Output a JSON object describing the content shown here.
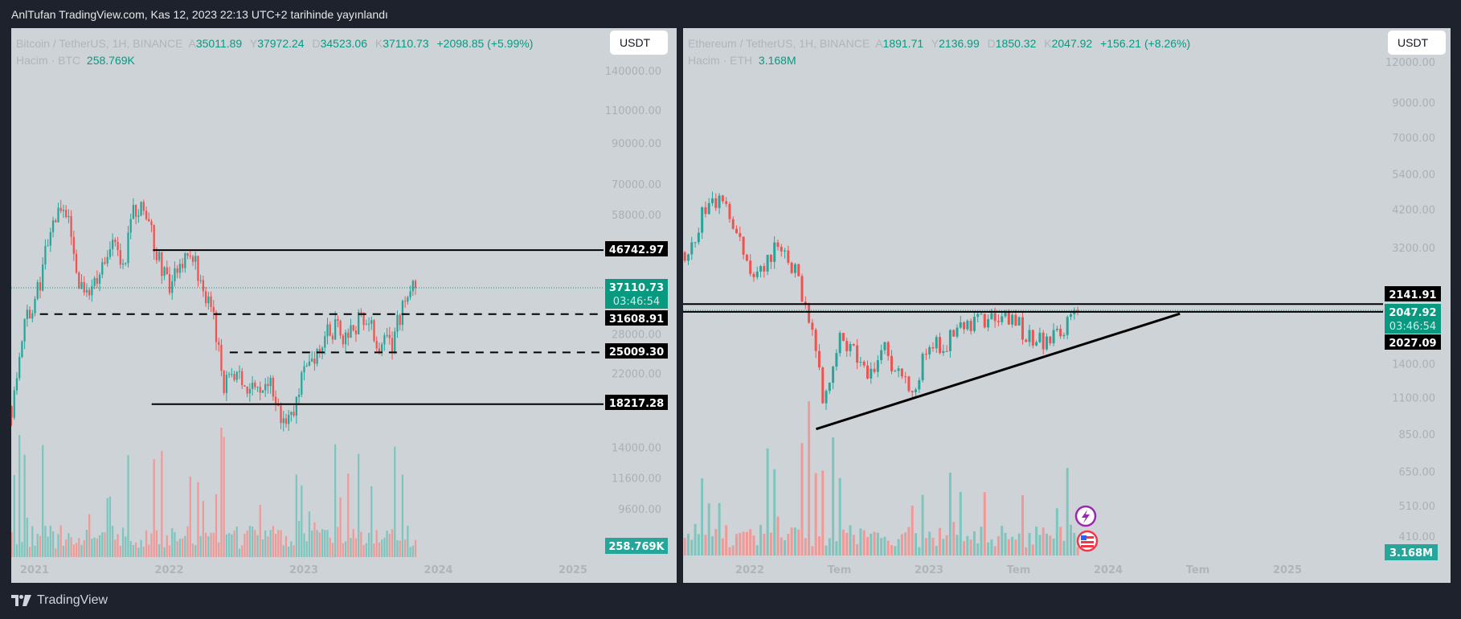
{
  "header": {
    "title": "AnlTufan TradingView.com, Kas 12, 2023 22:13 UTC+2 tarihinde yayınlandı"
  },
  "footer": {
    "brand": "TradingView"
  },
  "colors": {
    "up": "#26a69a",
    "down": "#ef5350",
    "panel": "#ced3d8",
    "bg": "#1e222d",
    "label_green": "#089981"
  },
  "chart_data": [
    {
      "type": "candlestick",
      "symbol": "Bitcoin / TetherUS, 1H, BINANCE",
      "legend": {
        "o_label": "A",
        "o": "35011.89",
        "h_label": "Y",
        "h": "37972.24",
        "l_label": "D",
        "l": "34523.06",
        "c_label": "K",
        "c": "37110.73",
        "change": "+2098.85 (+5.99%)"
      },
      "volume": {
        "label": "Hacim · BTC",
        "value": "258.769K"
      },
      "currency": "USDT",
      "scale": "log",
      "yticks": [
        "140000.00",
        "110000.00",
        "90000.00",
        "70000.00",
        "58000.00",
        "28000.00",
        "22000.00",
        "14000.00",
        "11600.00",
        "9600.00"
      ],
      "ytick_values": [
        140000,
        110000,
        90000,
        70000,
        58000,
        28000,
        22000,
        14000,
        11600,
        9600
      ],
      "xticks": [
        "2021",
        "2022",
        "2023",
        "2024",
        "2025"
      ],
      "xtick_years": [
        2021,
        2022,
        2023,
        2024,
        2025
      ],
      "current": {
        "price": "37110.73",
        "countdown": "03:46:54",
        "value": 37110.73
      },
      "levels": [
        {
          "label": "46742.97",
          "value": 46742.97,
          "style": "solid",
          "from": 2021.88
        },
        {
          "label": "31608.91",
          "value": 31608.91,
          "style": "dashed",
          "from": 2021.04
        },
        {
          "label": "25009.30",
          "value": 25009.3,
          "style": "dashed",
          "from": 2022.45
        },
        {
          "label": "18217.28",
          "value": 18217.28,
          "style": "solid",
          "from": 2021.87
        }
      ],
      "series_start": 2020.83,
      "monthly_close": [
        18000,
        29000,
        33000,
        45000,
        58000,
        57000,
        37000,
        35000,
        41000,
        47000,
        43000,
        61000,
        57000,
        46000,
        38000,
        43000,
        45000,
        38000,
        31000,
        20000,
        23000,
        20000,
        19500,
        20500,
        17000,
        16500,
        23000,
        23500,
        28000,
        29000,
        27000,
        30500,
        29300,
        26000,
        27000,
        34500,
        37110
      ]
    },
    {
      "type": "candlestick",
      "symbol": "Ethereum / TetherUS, 1H, BINANCE",
      "legend": {
        "o_label": "A",
        "o": "1891.71",
        "h_label": "Y",
        "h": "2136.99",
        "l_label": "D",
        "l": "1850.32",
        "c_label": "K",
        "c": "2047.92",
        "change": "+156.21 (+8.26%)"
      },
      "volume": {
        "label": "Hacim · ETH",
        "value": "3.168M"
      },
      "currency": "USDT",
      "scale": "log",
      "yticks": [
        "12000.00",
        "9000.00",
        "7000.00",
        "5400.00",
        "4200.00",
        "3200.00",
        "1400.00",
        "1100.00",
        "850.00",
        "650.00",
        "510.00",
        "410.00"
      ],
      "ytick_values": [
        12000,
        9000,
        7000,
        5400,
        4200,
        3200,
        1400,
        1100,
        850,
        650,
        510,
        410
      ],
      "xticks": [
        "2022",
        "Tem",
        "2023",
        "Tem",
        "2024",
        "Tem",
        "2025"
      ],
      "xtick_years": [
        2022,
        2022.5,
        2023,
        2023.5,
        2024,
        2024.5,
        2025
      ],
      "current": {
        "price": "2047.92",
        "countdown": "03:46:54",
        "value": 2047.92
      },
      "levels": [
        {
          "label": "2141.91",
          "value": 2141.91,
          "style": "solid",
          "from": 2021.6
        },
        {
          "label": "2027.09",
          "value": 2027.09,
          "style": "solid",
          "from": 2021.6
        }
      ],
      "trendline": {
        "from": {
          "t": 2022.37,
          "p": 880
        },
        "to": {
          "t": 2024.4,
          "p": 2000
        }
      },
      "series_start": 2021.58,
      "monthly_close": [
        3200,
        3000,
        4300,
        4600,
        3700,
        2700,
        2900,
        3300,
        2800,
        1950,
        1070,
        1650,
        1550,
        1330,
        1570,
        1280,
        1200,
        1580,
        1600,
        1800,
        1900,
        1870,
        1930,
        1850,
        1650,
        1670,
        1800,
        2047
      ]
    }
  ]
}
